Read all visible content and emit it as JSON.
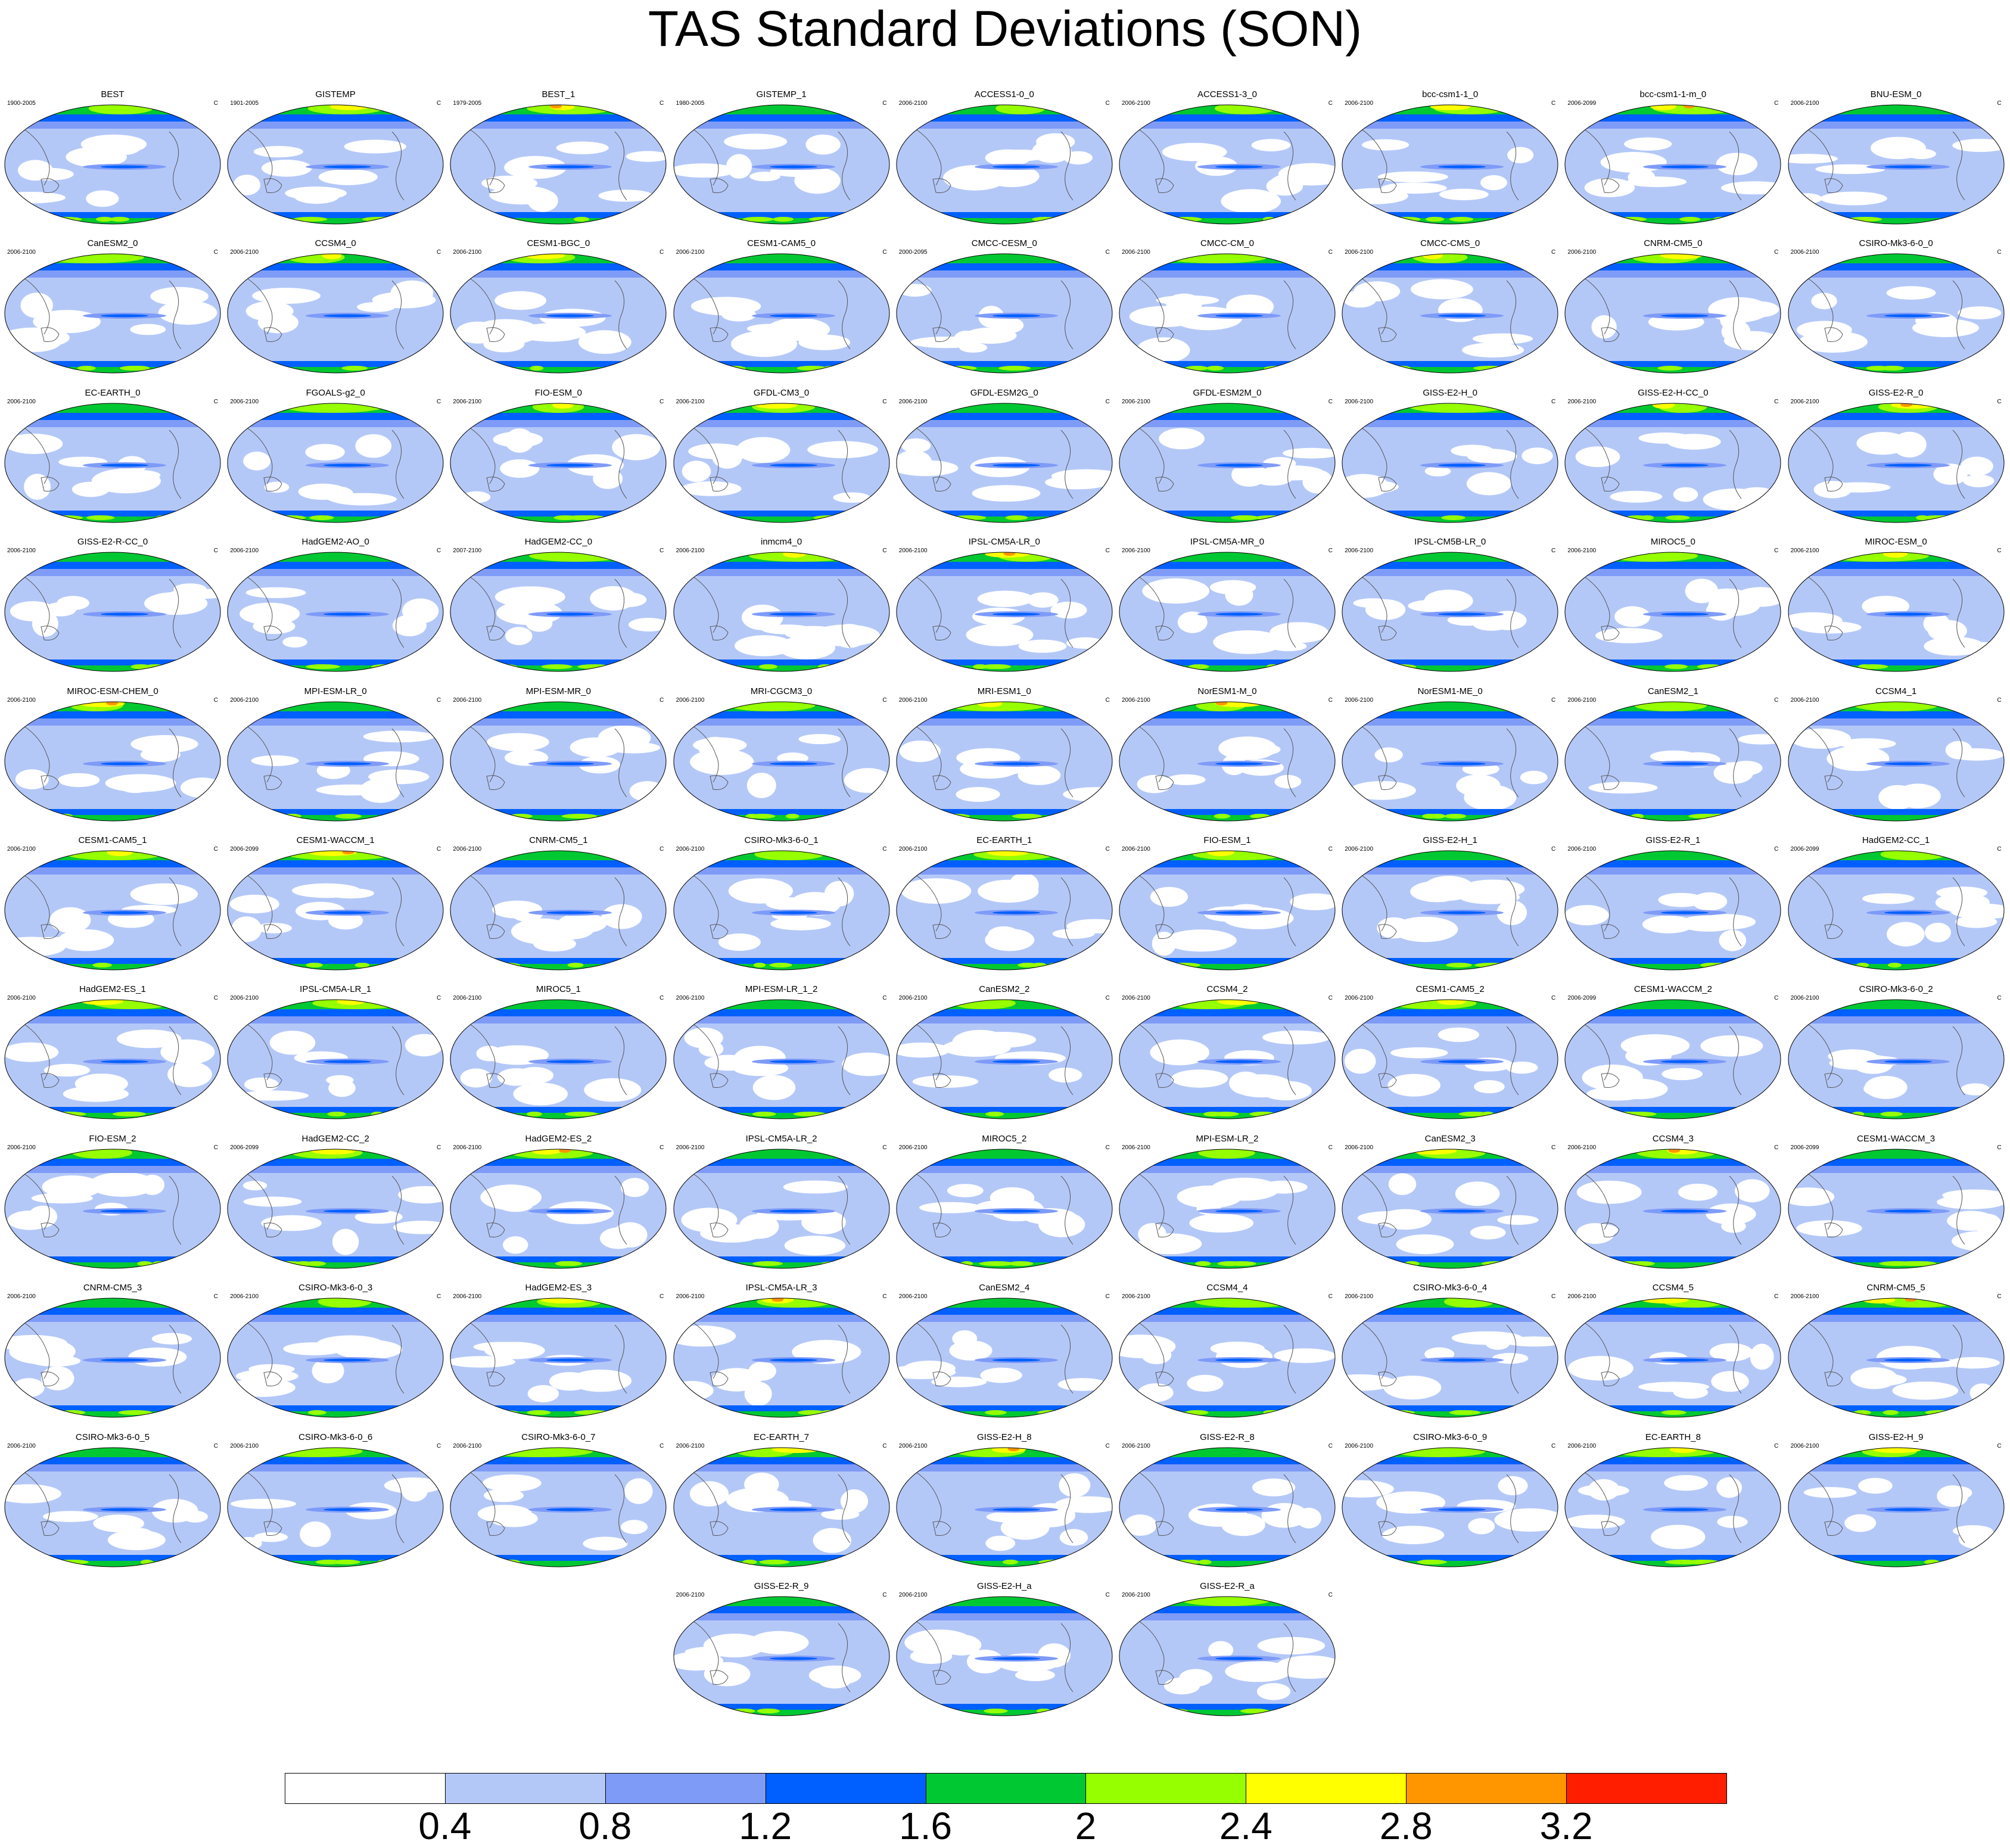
{
  "title": "TAS Standard Deviations (SON)",
  "unit_label": "C",
  "panels": [
    {
      "name": "BEST",
      "range": "1900-2005"
    },
    {
      "name": "GISTEMP",
      "range": "1901-2005"
    },
    {
      "name": "BEST_1",
      "range": "1979-2005"
    },
    {
      "name": "GISTEMP_1",
      "range": "1980-2005"
    },
    {
      "name": "ACCESS1-0_0",
      "range": "2006-2100"
    },
    {
      "name": "ACCESS1-3_0",
      "range": "2006-2100"
    },
    {
      "name": "bcc-csm1-1_0",
      "range": "2006-2100"
    },
    {
      "name": "bcc-csm1-1-m_0",
      "range": "2006-2099"
    },
    {
      "name": "BNU-ESM_0",
      "range": "2006-2100"
    },
    {
      "name": "CanESM2_0",
      "range": "2006-2100"
    },
    {
      "name": "CCSM4_0",
      "range": "2006-2100"
    },
    {
      "name": "CESM1-BGC_0",
      "range": "2006-2100"
    },
    {
      "name": "CESM1-CAM5_0",
      "range": "2006-2100"
    },
    {
      "name": "CMCC-CESM_0",
      "range": "2000-2095"
    },
    {
      "name": "CMCC-CM_0",
      "range": "2006-2100"
    },
    {
      "name": "CMCC-CMS_0",
      "range": "2006-2100"
    },
    {
      "name": "CNRM-CM5_0",
      "range": "2006-2100"
    },
    {
      "name": "CSIRO-Mk3-6-0_0",
      "range": "2006-2100"
    },
    {
      "name": "EC-EARTH_0",
      "range": "2006-2100"
    },
    {
      "name": "FGOALS-g2_0",
      "range": "2006-2100"
    },
    {
      "name": "FIO-ESM_0",
      "range": "2006-2100"
    },
    {
      "name": "GFDL-CM3_0",
      "range": "2006-2100"
    },
    {
      "name": "GFDL-ESM2G_0",
      "range": "2006-2100"
    },
    {
      "name": "GFDL-ESM2M_0",
      "range": "2006-2100"
    },
    {
      "name": "GISS-E2-H_0",
      "range": "2006-2100"
    },
    {
      "name": "GISS-E2-H-CC_0",
      "range": "2006-2100"
    },
    {
      "name": "GISS-E2-R_0",
      "range": "2006-2100"
    },
    {
      "name": "GISS-E2-R-CC_0",
      "range": "2006-2100"
    },
    {
      "name": "HadGEM2-AO_0",
      "range": "2006-2100"
    },
    {
      "name": "HadGEM2-CC_0",
      "range": "2007-2100"
    },
    {
      "name": "inmcm4_0",
      "range": "2006-2100"
    },
    {
      "name": "IPSL-CM5A-LR_0",
      "range": "2006-2100"
    },
    {
      "name": "IPSL-CM5A-MR_0",
      "range": "2006-2100"
    },
    {
      "name": "IPSL-CM5B-LR_0",
      "range": "2006-2100"
    },
    {
      "name": "MIROC5_0",
      "range": "2006-2100"
    },
    {
      "name": "MIROC-ESM_0",
      "range": "2006-2100"
    },
    {
      "name": "MIROC-ESM-CHEM_0",
      "range": "2006-2100"
    },
    {
      "name": "MPI-ESM-LR_0",
      "range": "2006-2100"
    },
    {
      "name": "MPI-ESM-MR_0",
      "range": "2006-2100"
    },
    {
      "name": "MRI-CGCM3_0",
      "range": "2006-2100"
    },
    {
      "name": "MRI-ESM1_0",
      "range": "2006-2100"
    },
    {
      "name": "NorESM1-M_0",
      "range": "2006-2100"
    },
    {
      "name": "NorESM1-ME_0",
      "range": "2006-2100"
    },
    {
      "name": "CanESM2_1",
      "range": "2006-2100"
    },
    {
      "name": "CCSM4_1",
      "range": "2006-2100"
    },
    {
      "name": "CESM1-CAM5_1",
      "range": "2006-2100"
    },
    {
      "name": "CESM1-WACCM_1",
      "range": "2006-2099"
    },
    {
      "name": "CNRM-CM5_1",
      "range": "2006-2100"
    },
    {
      "name": "CSIRO-Mk3-6-0_1",
      "range": "2006-2100"
    },
    {
      "name": "EC-EARTH_1",
      "range": "2006-2100"
    },
    {
      "name": "FIO-ESM_1",
      "range": "2006-2100"
    },
    {
      "name": "GISS-E2-H_1",
      "range": "2006-2100"
    },
    {
      "name": "GISS-E2-R_1",
      "range": "2006-2100"
    },
    {
      "name": "HadGEM2-CC_1",
      "range": "2006-2099"
    },
    {
      "name": "HadGEM2-ES_1",
      "range": "2006-2100"
    },
    {
      "name": "IPSL-CM5A-LR_1",
      "range": "2006-2100"
    },
    {
      "name": "MIROC5_1",
      "range": "2006-2100"
    },
    {
      "name": "MPI-ESM-LR_1_2",
      "range": "2006-2100"
    },
    {
      "name": "CanESM2_2",
      "range": "2006-2100"
    },
    {
      "name": "CCSM4_2",
      "range": "2006-2100"
    },
    {
      "name": "CESM1-CAM5_2",
      "range": "2006-2100"
    },
    {
      "name": "CESM1-WACCM_2",
      "range": "2006-2099"
    },
    {
      "name": "CSIRO-Mk3-6-0_2",
      "range": "2006-2100"
    },
    {
      "name": "FIO-ESM_2",
      "range": "2006-2100"
    },
    {
      "name": "HadGEM2-CC_2",
      "range": "2006-2099"
    },
    {
      "name": "HadGEM2-ES_2",
      "range": "2006-2100"
    },
    {
      "name": "IPSL-CM5A-LR_2",
      "range": "2006-2100"
    },
    {
      "name": "MIROC5_2",
      "range": "2006-2100"
    },
    {
      "name": "MPI-ESM-LR_2",
      "range": "2006-2100"
    },
    {
      "name": "CanESM2_3",
      "range": "2006-2100"
    },
    {
      "name": "CCSM4_3",
      "range": "2006-2100"
    },
    {
      "name": "CESM1-WACCM_3",
      "range": "2006-2099"
    },
    {
      "name": "CNRM-CM5_3",
      "range": "2006-2100"
    },
    {
      "name": "CSIRO-Mk3-6-0_3",
      "range": "2006-2100"
    },
    {
      "name": "HadGEM2-ES_3",
      "range": "2006-2100"
    },
    {
      "name": "IPSL-CM5A-LR_3",
      "range": "2006-2100"
    },
    {
      "name": "CanESM2_4",
      "range": "2006-2100"
    },
    {
      "name": "CCSM4_4",
      "range": "2006-2100"
    },
    {
      "name": "CSIRO-Mk3-6-0_4",
      "range": "2006-2100"
    },
    {
      "name": "CCSM4_5",
      "range": "2006-2100"
    },
    {
      "name": "CNRM-CM5_5",
      "range": "2006-2100"
    },
    {
      "name": "CSIRO-Mk3-6-0_5",
      "range": "2006-2100"
    },
    {
      "name": "CSIRO-Mk3-6-0_6",
      "range": "2006-2100"
    },
    {
      "name": "CSIRO-Mk3-6-0_7",
      "range": "2006-2100"
    },
    {
      "name": "EC-EARTH_7",
      "range": "2006-2100"
    },
    {
      "name": "GISS-E2-H_8",
      "range": "2006-2100"
    },
    {
      "name": "GISS-E2-R_8",
      "range": "2006-2100"
    },
    {
      "name": "CSIRO-Mk3-6-0_9",
      "range": "2006-2100"
    },
    {
      "name": "EC-EARTH_8",
      "range": "2006-2100"
    },
    {
      "name": "GISS-E2-H_9",
      "range": "2006-2100"
    },
    {
      "name": "GISS-E2-R_9",
      "range": "2006-2100"
    },
    {
      "name": "GISS-E2-H_a",
      "range": "2006-2100"
    },
    {
      "name": "GISS-E2-R_a",
      "range": "2006-2100"
    }
  ],
  "chart_data": {
    "type": "heatmap",
    "title": "TAS Standard Deviations (SON)",
    "unit": "C",
    "colorbar": {
      "levels": [
        0.4,
        0.8,
        1.2,
        1.6,
        2,
        2.4,
        2.8,
        3.2
      ],
      "tick_labels": [
        "0.4",
        "0.8",
        "1.2",
        "1.6",
        "2",
        "2.4",
        "2.8",
        "3.2"
      ],
      "colors": [
        "#ffffff",
        "#b4c8f8",
        "#7f9bf8",
        "#0060ff",
        "#00c832",
        "#96ff00",
        "#ffff00",
        "#ff9600",
        "#ff1e00"
      ]
    }
  }
}
